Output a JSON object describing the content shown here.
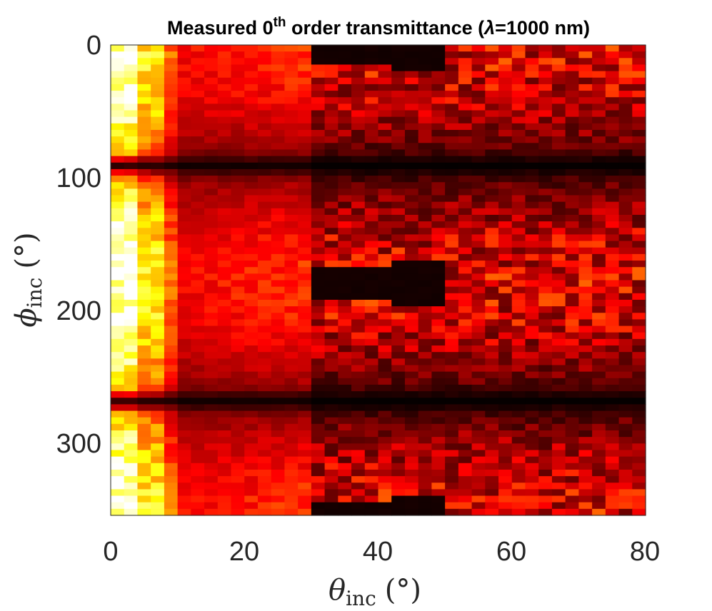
{
  "chart_data": {
    "type": "heatmap",
    "title": {
      "prefix": "Measured 0",
      "superscript": "th",
      "suffix": " order transmittance (",
      "symbol": "λ",
      "tail": "=1000 nm)"
    },
    "xlabel": {
      "symbol": "θ",
      "subscript": "inc",
      "unit": "(°)"
    },
    "ylabel": {
      "symbol": "ϕ",
      "subscript": "inc",
      "unit": "(°)"
    },
    "x_range": [
      0,
      80
    ],
    "y_range": [
      0,
      355
    ],
    "y_reversed": true,
    "x_ticks": [
      "0",
      "20",
      "40",
      "60",
      "80"
    ],
    "y_ticks": [
      "0",
      "100",
      "200",
      "300"
    ],
    "x_step": 2,
    "y_step": 5,
    "colormap": "hot",
    "colormap_stops": [
      "#000000",
      "#e00000",
      "#ff4000",
      "#ffd000",
      "#ffffff"
    ],
    "value_range": [
      0,
      1
    ],
    "description_profile": {
      "bright_column_theta": [
        0,
        4
      ],
      "orange_column_theta": [
        4,
        8
      ],
      "dark_cutoff_theta": 30,
      "dark_phi_bands": [
        90,
        270
      ],
      "cone_centers_phi": [
        0,
        180,
        360
      ]
    }
  }
}
